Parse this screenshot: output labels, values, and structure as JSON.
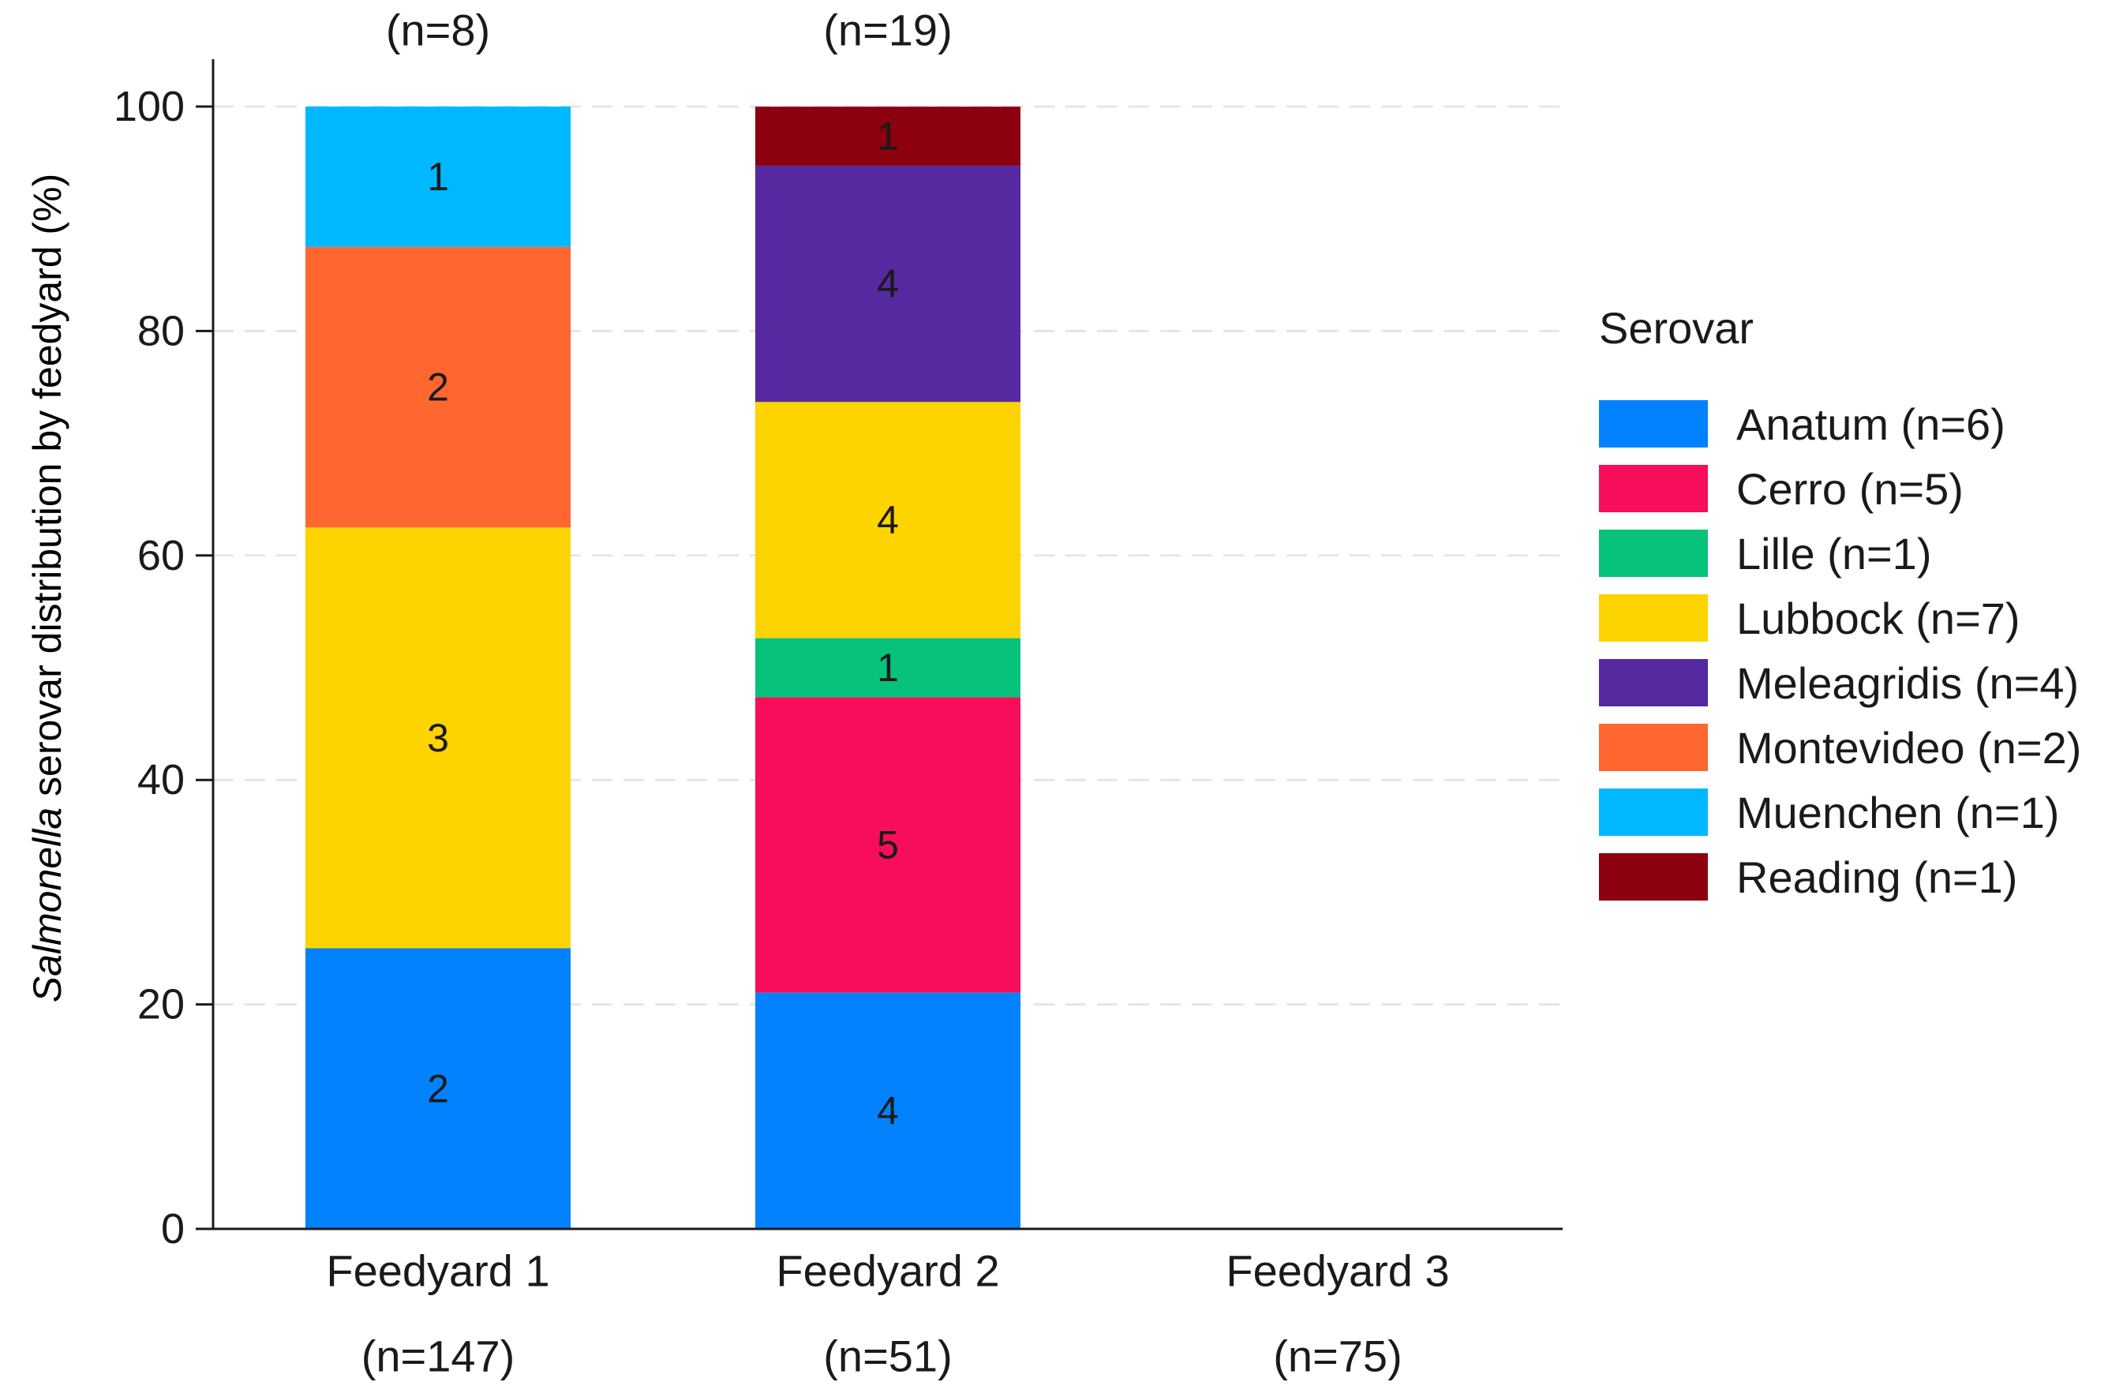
{
  "chart_data": {
    "type": "bar",
    "stacked": true,
    "title": "",
    "xlabel": "",
    "ylabel_italic": "Salmonella",
    "ylabel_rest": " serovar distribution by feedyard (%)",
    "ylim": [
      0,
      100
    ],
    "yticks": [
      0,
      20,
      40,
      60,
      80,
      100
    ],
    "grid": true,
    "categories": [
      "Feedyard 1",
      "Feedyard 2",
      "Feedyard 3"
    ],
    "category_totals": [
      "(n=147)",
      "(n=51)",
      "(n=75)"
    ],
    "top_labels": [
      "(n=8)",
      "(n=19)",
      ""
    ],
    "legend_title": "Serovar",
    "legend_position": "right",
    "series": [
      {
        "name": "Anatum (n=6)",
        "color": "#0382FF",
        "counts": [
          2,
          4,
          0
        ],
        "values": [
          25.0,
          21.05,
          0
        ]
      },
      {
        "name": "Cerro (n=5)",
        "color": "#F60E5A",
        "counts": [
          0,
          5,
          0
        ],
        "values": [
          0,
          26.32,
          0
        ]
      },
      {
        "name": "Lille (n=1)",
        "color": "#06C27A",
        "counts": [
          0,
          1,
          0
        ],
        "values": [
          0,
          5.26,
          0
        ]
      },
      {
        "name": "Lubbock (n=7)",
        "color": "#FDD300",
        "counts": [
          3,
          4,
          0
        ],
        "values": [
          37.5,
          21.05,
          0
        ]
      },
      {
        "name": "Meleagridis (n=4)",
        "color": "#5529A0",
        "counts": [
          0,
          4,
          0
        ],
        "values": [
          0,
          21.05,
          0
        ]
      },
      {
        "name": "Montevideo (n=2)",
        "color": "#FF6630",
        "counts": [
          2,
          0,
          0
        ],
        "values": [
          25.0,
          0,
          0
        ]
      },
      {
        "name": "Muenchen (n=1)",
        "color": "#00B8FF",
        "counts": [
          1,
          0,
          0
        ],
        "values": [
          12.5,
          0,
          0
        ]
      },
      {
        "name": "Reading (n=1)",
        "color": "#8C0010",
        "counts": [
          0,
          1,
          0
        ],
        "values": [
          0,
          5.26,
          0
        ]
      }
    ]
  }
}
